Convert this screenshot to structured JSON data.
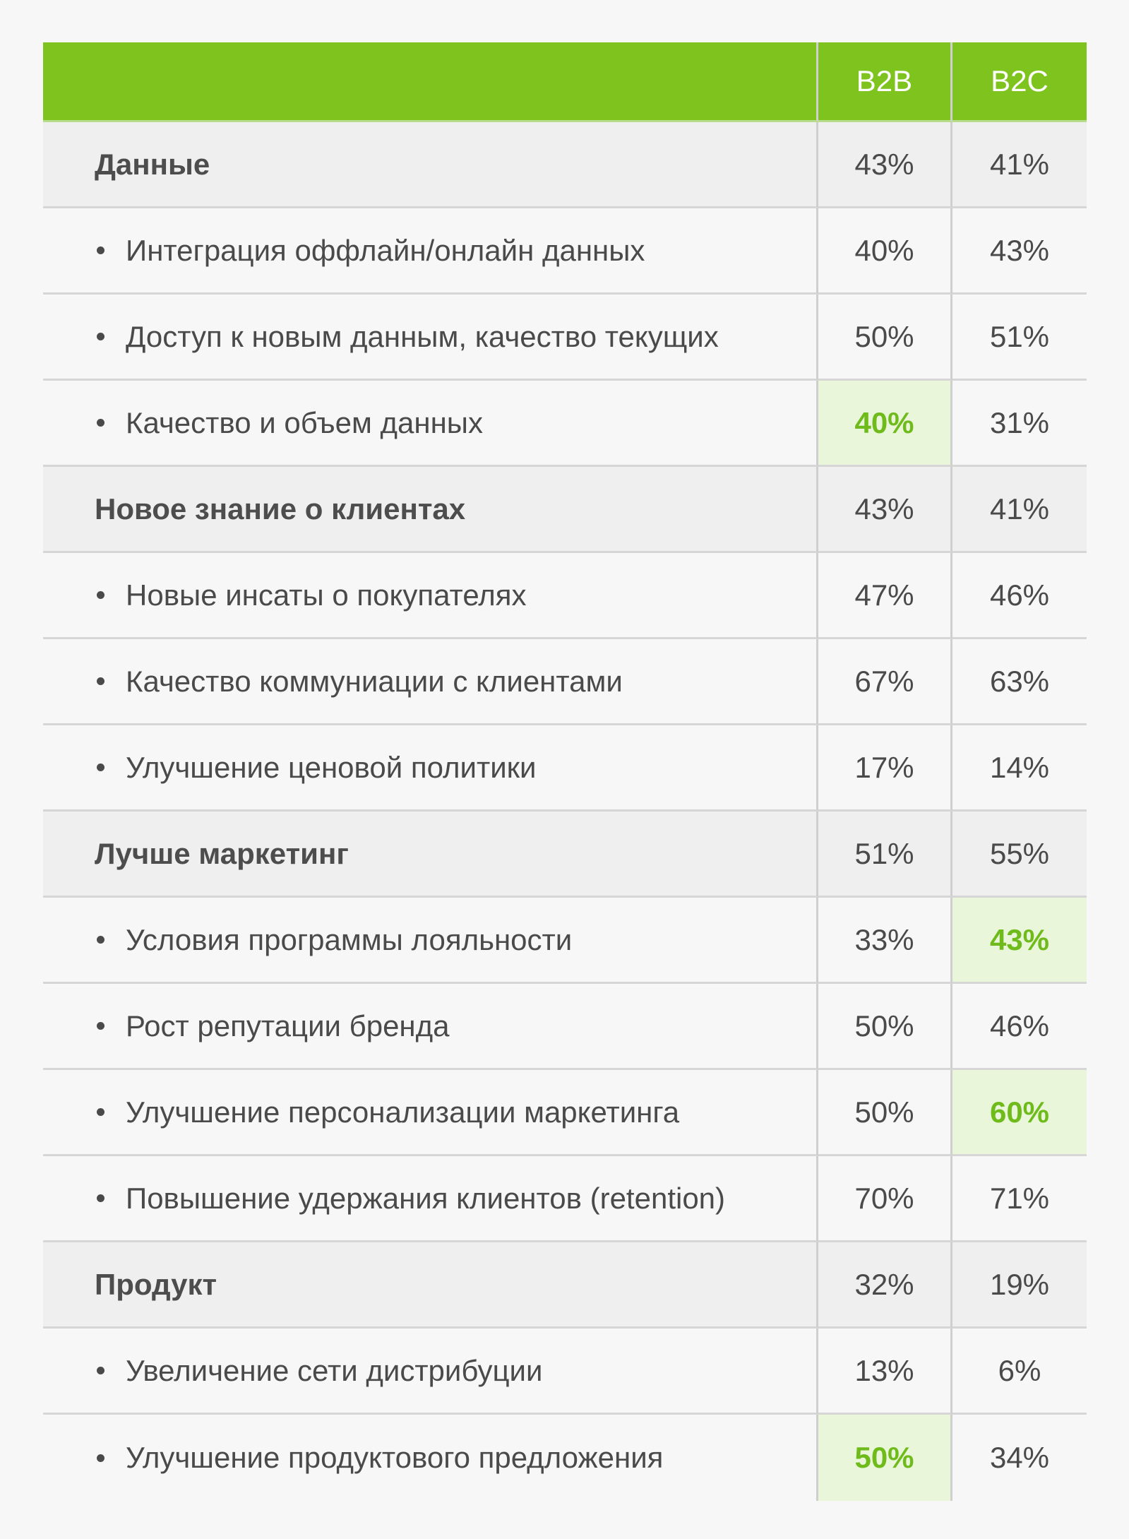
{
  "header": {
    "col1": "",
    "col2": "B2B",
    "col3": "B2C"
  },
  "rows": [
    {
      "type": "category",
      "label": "Данные",
      "b2b": "43%",
      "b2c": "41%",
      "hl_b2b": false,
      "hl_b2c": false
    },
    {
      "type": "item",
      "label": "Интеграция оффлайн/онлайн данных",
      "b2b": "40%",
      "b2c": "43%",
      "hl_b2b": false,
      "hl_b2c": false
    },
    {
      "type": "item",
      "label": "Доступ к новым данным, качество текущих",
      "b2b": "50%",
      "b2c": "51%",
      "hl_b2b": false,
      "hl_b2c": false
    },
    {
      "type": "item",
      "label": "Качество и объем данных",
      "b2b": "40%",
      "b2c": "31%",
      "hl_b2b": true,
      "hl_b2c": false
    },
    {
      "type": "category",
      "label": "Новое знание о клиентах",
      "b2b": "43%",
      "b2c": "41%",
      "hl_b2b": false,
      "hl_b2c": false
    },
    {
      "type": "item",
      "label": "Новые инсаты о покупателях",
      "b2b": "47%",
      "b2c": "46%",
      "hl_b2b": false,
      "hl_b2c": false
    },
    {
      "type": "item",
      "label": "Качество коммуниации с клиентами",
      "b2b": "67%",
      "b2c": "63%",
      "hl_b2b": false,
      "hl_b2c": false
    },
    {
      "type": "item",
      "label": "Улучшение ценовой политики",
      "b2b": "17%",
      "b2c": "14%",
      "hl_b2b": false,
      "hl_b2c": false
    },
    {
      "type": "category",
      "label": "Лучше маркетинг",
      "b2b": "51%",
      "b2c": "55%",
      "hl_b2b": false,
      "hl_b2c": false
    },
    {
      "type": "item",
      "label": "Условия программы лояльности",
      "b2b": "33%",
      "b2c": "43%",
      "hl_b2b": false,
      "hl_b2c": true
    },
    {
      "type": "item",
      "label": "Рост репутации бренда",
      "b2b": "50%",
      "b2c": "46%",
      "hl_b2b": false,
      "hl_b2c": false
    },
    {
      "type": "item",
      "label": "Улучшение персонализации маркетинга",
      "b2b": "50%",
      "b2c": "60%",
      "hl_b2b": false,
      "hl_b2c": true
    },
    {
      "type": "item",
      "label": "Повышение удержания клиентов (retention)",
      "b2b": "70%",
      "b2c": "71%",
      "hl_b2b": false,
      "hl_b2c": false
    },
    {
      "type": "category",
      "label": "Продукт",
      "b2b": "32%",
      "b2c": "19%",
      "hl_b2b": false,
      "hl_b2c": false
    },
    {
      "type": "item",
      "label": "Увеличение сети дистрибуции",
      "b2b": "13%",
      "b2c": "6%",
      "hl_b2b": false,
      "hl_b2c": false
    },
    {
      "type": "item",
      "label": "Улучшение продуктового предложения",
      "b2b": "50%",
      "b2c": "34%",
      "hl_b2b": true,
      "hl_b2c": false
    }
  ],
  "colors": {
    "header_green": "#7fc41e",
    "highlight_text": "#6fbb1c",
    "highlight_bg": "#e9f6d9"
  }
}
